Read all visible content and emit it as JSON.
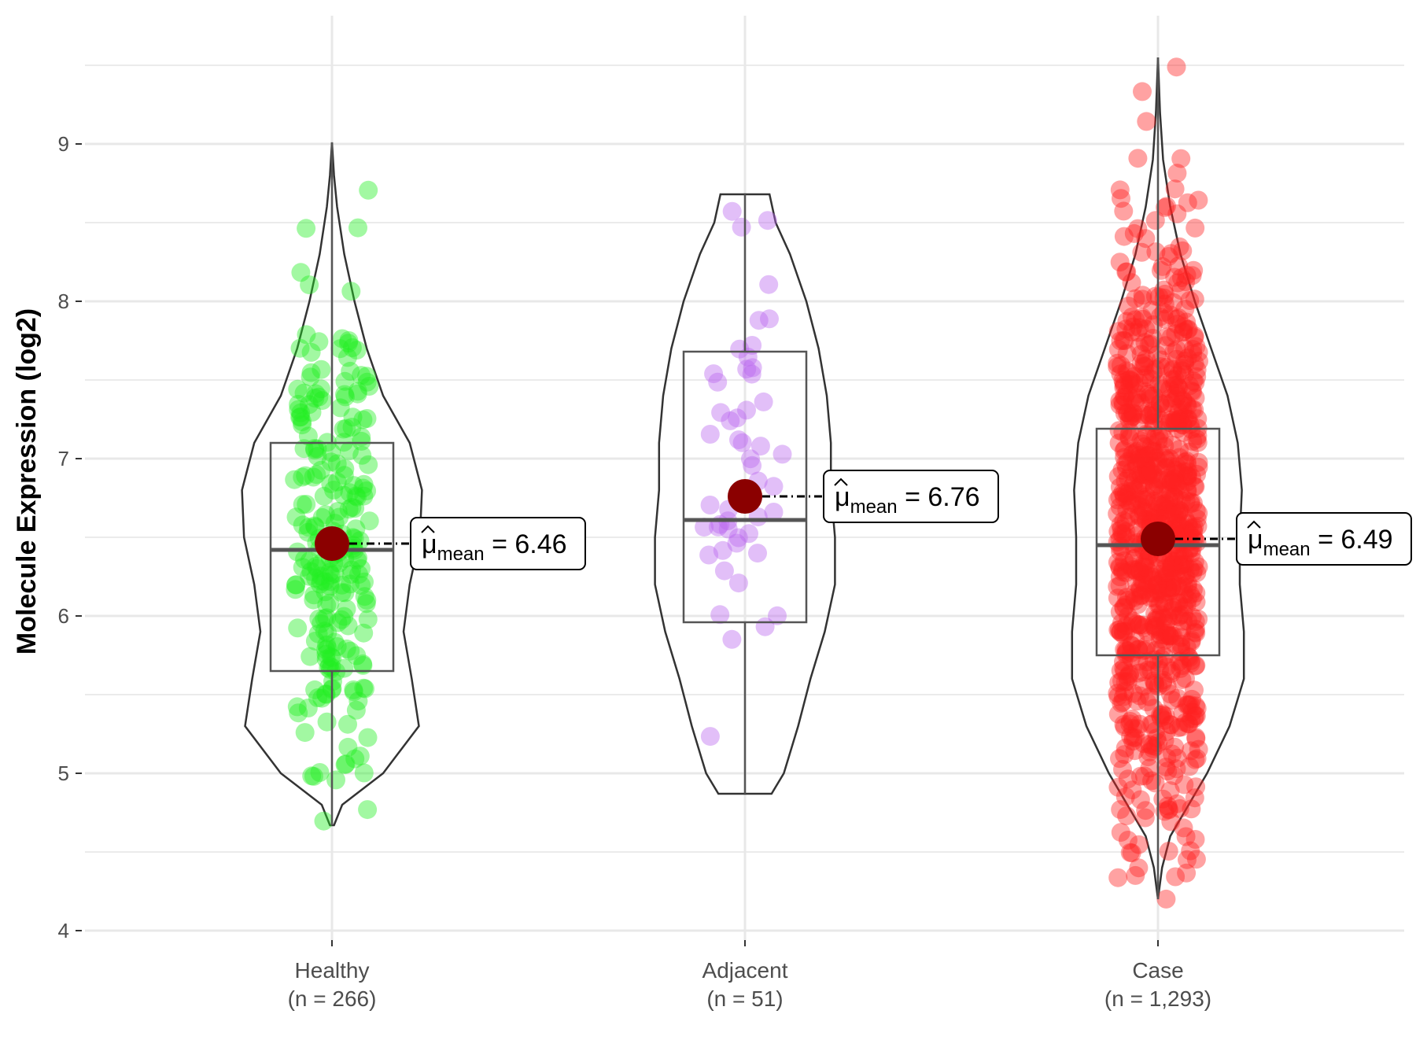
{
  "chart_data": {
    "type": "violin",
    "title": "",
    "xlabel": "",
    "ylabel": "Molecule Expression (log2)",
    "ylim": [
      3.95,
      9.65
    ],
    "yticks": [
      4,
      5,
      6,
      7,
      8,
      9
    ],
    "grid": true,
    "mean_prefix": "μ",
    "mean_subscript": "mean",
    "groups": [
      {
        "name": "Healthy",
        "n_label": "(n = 266)",
        "color": "#22ee22",
        "violin_min": 4.67,
        "violin_max": 9.01,
        "q1": 5.65,
        "median": 6.42,
        "q3": 7.1,
        "whisker_low": 4.67,
        "whisker_high": 9.01,
        "mean": 6.46,
        "mean_label": "6.46",
        "density": [
          [
            4.67,
            0.02
          ],
          [
            4.8,
            0.1
          ],
          [
            5.0,
            0.5
          ],
          [
            5.3,
            0.85
          ],
          [
            5.6,
            0.78
          ],
          [
            5.9,
            0.7
          ],
          [
            6.2,
            0.76
          ],
          [
            6.5,
            0.86
          ],
          [
            6.8,
            0.88
          ],
          [
            7.1,
            0.76
          ],
          [
            7.4,
            0.5
          ],
          [
            7.7,
            0.34
          ],
          [
            8.0,
            0.22
          ],
          [
            8.3,
            0.12
          ],
          [
            8.6,
            0.05
          ],
          [
            8.8,
            0.02
          ],
          [
            9.01,
            0.0
          ]
        ]
      },
      {
        "name": "Adjacent",
        "n_label": "(n = 51)",
        "color": "#bb66ee",
        "violin_min": 4.87,
        "violin_max": 8.68,
        "q1": 5.96,
        "median": 6.61,
        "q3": 7.68,
        "whisker_low": 4.87,
        "whisker_high": 8.68,
        "mean": 6.76,
        "mean_label": "6.76",
        "density": [
          [
            4.87,
            0.26
          ],
          [
            5.0,
            0.38
          ],
          [
            5.3,
            0.52
          ],
          [
            5.6,
            0.64
          ],
          [
            5.9,
            0.78
          ],
          [
            6.2,
            0.88
          ],
          [
            6.5,
            0.88
          ],
          [
            6.8,
            0.84
          ],
          [
            7.1,
            0.84
          ],
          [
            7.4,
            0.8
          ],
          [
            7.7,
            0.72
          ],
          [
            8.0,
            0.6
          ],
          [
            8.3,
            0.44
          ],
          [
            8.5,
            0.3
          ],
          [
            8.68,
            0.24
          ]
        ]
      },
      {
        "name": "Case",
        "n_label": "(n = 1,293)",
        "color": "#ff2222",
        "violin_min": 4.2,
        "violin_max": 9.55,
        "q1": 5.75,
        "median": 6.45,
        "q3": 7.19,
        "whisker_low": 4.2,
        "whisker_high": 9.55,
        "mean": 6.49,
        "mean_label": "6.49",
        "density": [
          [
            4.2,
            0.0
          ],
          [
            4.4,
            0.04
          ],
          [
            4.6,
            0.12
          ],
          [
            4.8,
            0.3
          ],
          [
            5.0,
            0.48
          ],
          [
            5.3,
            0.7
          ],
          [
            5.6,
            0.84
          ],
          [
            5.9,
            0.84
          ],
          [
            6.2,
            0.8
          ],
          [
            6.5,
            0.8
          ],
          [
            6.8,
            0.82
          ],
          [
            7.1,
            0.78
          ],
          [
            7.4,
            0.68
          ],
          [
            7.7,
            0.52
          ],
          [
            8.0,
            0.36
          ],
          [
            8.3,
            0.22
          ],
          [
            8.6,
            0.12
          ],
          [
            8.9,
            0.05
          ],
          [
            9.2,
            0.02
          ],
          [
            9.55,
            0.0
          ]
        ]
      }
    ]
  }
}
